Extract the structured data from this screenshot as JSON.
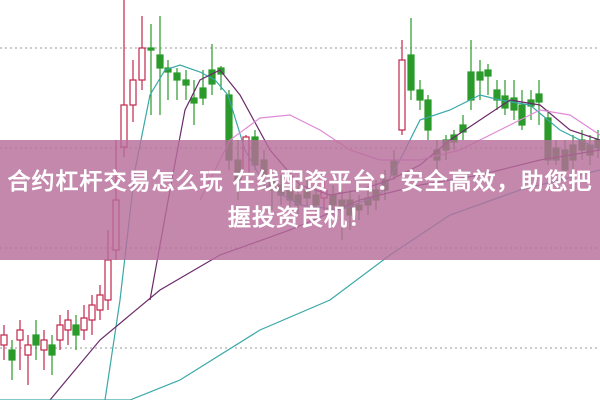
{
  "article": {
    "title": "合约杠杆交易怎么玩 在线配资平台：安全高效，助您把握投资良机！"
  },
  "colors": {
    "banner": "#c48aae",
    "up_candle": "#c0264a",
    "down_candle": "#2a9a2a",
    "ma_short": "#3aa8a8",
    "ma_mid": "#6a2a6a",
    "ma_long": "#e08ad8"
  }
}
